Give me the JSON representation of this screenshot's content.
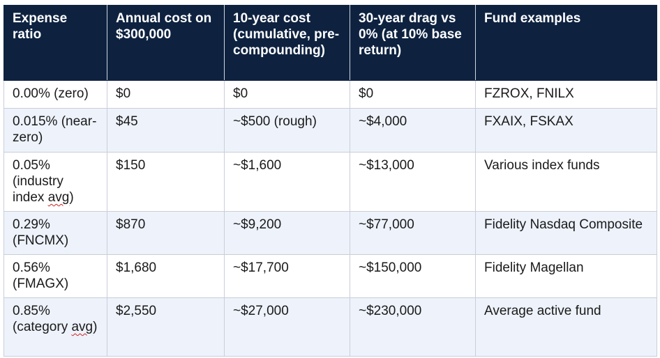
{
  "table": {
    "headers": [
      "Expense ratio",
      "Annual cost on $300,000",
      "10-year cost (cumulative, pre-compounding)",
      "30-year drag vs 0% (at 10% base return)",
      "Fund examples"
    ],
    "rows": [
      {
        "ratio": "0.00% (zero)",
        "ratio_pre": "0.00% (zero)",
        "ratio_sq": "",
        "annual": "$0",
        "ten_year": "$0",
        "thirty_year": "$0",
        "funds": "FZROX, FNILX"
      },
      {
        "ratio": "0.015% (near-zero)",
        "ratio_pre": "0.015% (near-zero)",
        "ratio_sq": "",
        "annual": "$45",
        "ten_year": "~$500 (rough)",
        "thirty_year": "~$4,000",
        "funds": "FXAIX, FSKAX"
      },
      {
        "ratio": "0.05% (industry index avg)",
        "ratio_pre": "0.05% (industry index ",
        "ratio_sq": "avg",
        "ratio_post": ")",
        "annual": "$150",
        "ten_year": "~$1,600",
        "thirty_year": "~$13,000",
        "funds": "Various index funds"
      },
      {
        "ratio": "0.29% (FNCMX)",
        "ratio_pre": "0.29% (FNCMX)",
        "ratio_sq": "",
        "annual": "$870",
        "ten_year": "~$9,200",
        "thirty_year": "~$77,000",
        "funds": "Fidelity Nasdaq Composite"
      },
      {
        "ratio": "0.56% (FMAGX)",
        "ratio_pre": "0.56% (FMAGX)",
        "ratio_sq": "",
        "annual": "$1,680",
        "ten_year": "~$17,700",
        "thirty_year": "~$150,000",
        "funds": "Fidelity Magellan"
      },
      {
        "ratio": "0.85% (category avg)",
        "ratio_pre": "0.85% (category ",
        "ratio_sq": "avg",
        "ratio_post": ")",
        "annual": "$2,550",
        "ten_year": "~$27,000",
        "thirty_year": "~$230,000",
        "funds": "Average active fund"
      }
    ]
  },
  "colors": {
    "header_bg": "#0e2240",
    "header_text": "#ffffff",
    "row_alt_bg": "#edf2fb",
    "border": "#c9ced8",
    "spellcheck_underline": "#d02020"
  }
}
